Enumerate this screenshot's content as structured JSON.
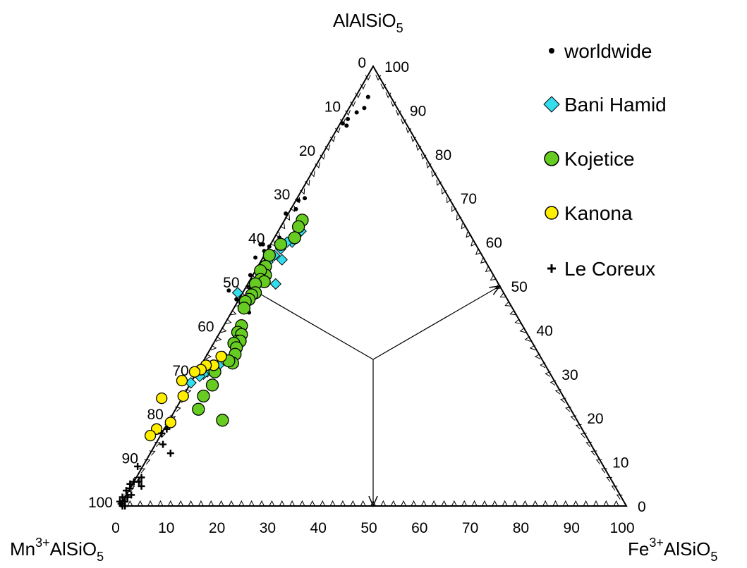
{
  "chart_data": {
    "type": "scatter",
    "subtype": "ternary",
    "apex_labels": {
      "top": {
        "main": "AlAlSiO",
        "sub": "5"
      },
      "left": {
        "pre": "Mn",
        "sup": "3+",
        "main": "AlSiO",
        "sub": "5"
      },
      "right": {
        "pre": "Fe",
        "sup": "3+",
        "main": "AlSiO",
        "sub": "5"
      }
    },
    "axis_ticks": [
      "0",
      "10",
      "20",
      "30",
      "40",
      "50",
      "60",
      "70",
      "80",
      "90",
      "100"
    ],
    "ranges": {
      "Mn": [
        0,
        100
      ],
      "Fe": [
        0,
        100
      ],
      "AlAl": [
        0,
        100
      ]
    },
    "grid": false,
    "legend_position": "top-right",
    "series": [
      {
        "name": "worldwide",
        "marker": "dot",
        "color": "#000000",
        "points": [
          {
            "fe": 2.5,
            "mn": 4.5
          },
          {
            "fe": 3,
            "mn": 6.5
          },
          {
            "fe": 2,
            "mn": 8.5
          },
          {
            "fe": 1,
            "mn": 11
          },
          {
            "fe": 1.5,
            "mn": 12
          },
          {
            "fe": 0.5,
            "mn": 12.5
          },
          {
            "fe": 1.5,
            "mn": 28.5
          },
          {
            "fe": 0.5,
            "mn": 30
          },
          {
            "fe": 1,
            "mn": 31.5
          },
          {
            "fe": -0.5,
            "mn": 34
          },
          {
            "fe": 1,
            "mn": 38
          },
          {
            "fe": 0,
            "mn": 41
          },
          {
            "fe": -0.5,
            "mn": 42.5
          },
          {
            "fe": -1.5,
            "mn": 42
          },
          {
            "fe": -2,
            "mn": 42.5
          },
          {
            "fe": -1.5,
            "mn": 45
          },
          {
            "fe": 0.5,
            "mn": 45
          },
          {
            "fe": -0.5,
            "mn": 48
          },
          {
            "fe": 1,
            "mn": 52
          },
          {
            "fe": 3.5,
            "mn": 52.5
          },
          {
            "fe": -0.5,
            "mn": 53.5
          },
          {
            "fe": -3,
            "mn": 54
          }
        ]
      },
      {
        "name": "Bani Hamid",
        "marker": "diamond",
        "color": "#33ddee",
        "points": [
          {
            "fe": 4.5,
            "mn": 33
          },
          {
            "fe": 4,
            "mn": 34.5
          },
          {
            "fe": 4,
            "mn": 36
          },
          {
            "fe": 3,
            "mn": 37
          },
          {
            "fe": 2.5,
            "mn": 39
          },
          {
            "fe": 4,
            "mn": 40
          },
          {
            "fe": 2,
            "mn": 41
          },
          {
            "fe": 1.5,
            "mn": 43
          },
          {
            "fe": 5.5,
            "mn": 44
          },
          {
            "fe": -1,
            "mn": 52.5
          },
          {
            "fe": 3.5,
            "mn": 62.5
          },
          {
            "fe": 3.5,
            "mn": 64.5
          },
          {
            "fe": 2,
            "mn": 67.5
          },
          {
            "fe": 1.5,
            "mn": 68.5
          },
          {
            "fe": 1,
            "mn": 69.5
          },
          {
            "fe": 0,
            "mn": 72
          }
        ]
      },
      {
        "name": "Kojetice",
        "marker": "circle",
        "color": "#66cc22",
        "points": [
          {
            "fe": 3.5,
            "mn": 31.5
          },
          {
            "fe": 3.5,
            "mn": 33
          },
          {
            "fe": 4,
            "mn": 35
          },
          {
            "fe": 2,
            "mn": 38.5
          },
          {
            "fe": 1,
            "mn": 42
          },
          {
            "fe": 1.5,
            "mn": 44
          },
          {
            "fe": 2.5,
            "mn": 45
          },
          {
            "fe": 1,
            "mn": 45.5
          },
          {
            "fe": 2,
            "mn": 46.5
          },
          {
            "fe": 3,
            "mn": 46
          },
          {
            "fe": 1.5,
            "mn": 48
          },
          {
            "fe": 2.5,
            "mn": 49
          },
          {
            "fe": 2,
            "mn": 50
          },
          {
            "fe": 2,
            "mn": 51
          },
          {
            "fe": 1.5,
            "mn": 52
          },
          {
            "fe": 2,
            "mn": 53
          },
          {
            "fe": 3.5,
            "mn": 55.5
          },
          {
            "fe": 3.5,
            "mn": 57
          },
          {
            "fe": 4.5,
            "mn": 56.5
          },
          {
            "fe": 4.5,
            "mn": 58
          },
          {
            "fe": 5,
            "mn": 57.5
          },
          {
            "fe": 4,
            "mn": 59
          },
          {
            "fe": 5,
            "mn": 59
          },
          {
            "fe": 5.5,
            "mn": 60
          },
          {
            "fe": 6,
            "mn": 61.5
          },
          {
            "fe": 5,
            "mn": 62
          },
          {
            "fe": 3.5,
            "mn": 66
          },
          {
            "fe": 4.5,
            "mn": 68
          },
          {
            "fe": 4,
            "mn": 71
          },
          {
            "fe": 4.5,
            "mn": 73.5
          },
          {
            "fe": 10.5,
            "mn": 70
          }
        ]
      },
      {
        "name": "Kanona",
        "marker": "circle",
        "color": "#ffee00",
        "points": [
          {
            "fe": 3,
            "mn": 63
          },
          {
            "fe": 2.5,
            "mn": 65.5
          },
          {
            "fe": 1,
            "mn": 67
          },
          {
            "fe": 0.5,
            "mn": 68.5
          },
          {
            "fe": -0.5,
            "mn": 70
          },
          {
            "fe": -2,
            "mn": 73.5
          },
          {
            "fe": 0,
            "mn": 75
          },
          {
            "fe": -4,
            "mn": 79.5
          },
          {
            "fe": 0.5,
            "mn": 80.5
          },
          {
            "fe": -1.5,
            "mn": 84
          },
          {
            "fe": -2,
            "mn": 86
          }
        ]
      },
      {
        "name": "Le Coreux",
        "marker": "plus",
        "color": "#000000",
        "points": [
          {
            "fe": 0.5,
            "mn": 82
          },
          {
            "fe": 0,
            "mn": 83.5
          },
          {
            "fe": 1.5,
            "mn": 84.5
          },
          {
            "fe": 4,
            "mn": 84
          },
          {
            "fe": -1,
            "mn": 92
          },
          {
            "fe": 1,
            "mn": 92.5
          },
          {
            "fe": 1,
            "mn": 93.5
          },
          {
            "fe": 2,
            "mn": 93.5
          },
          {
            "fe": 0,
            "mn": 94.5
          },
          {
            "fe": -0.5,
            "mn": 95.5
          },
          {
            "fe": 0,
            "mn": 96
          },
          {
            "fe": 1,
            "mn": 96.5
          },
          {
            "fe": 0.5,
            "mn": 97.5
          },
          {
            "fe": -0.5,
            "mn": 97
          },
          {
            "fe": -0.5,
            "mn": 98.5
          },
          {
            "fe": 0.5,
            "mn": 98.5
          },
          {
            "fe": 1,
            "mn": 99
          },
          {
            "fe": 0,
            "mn": 99.5
          },
          {
            "fe": -0.5,
            "mn": 99.5
          },
          {
            "fe": 0.5,
            "mn": 99.5
          }
        ]
      }
    ]
  }
}
